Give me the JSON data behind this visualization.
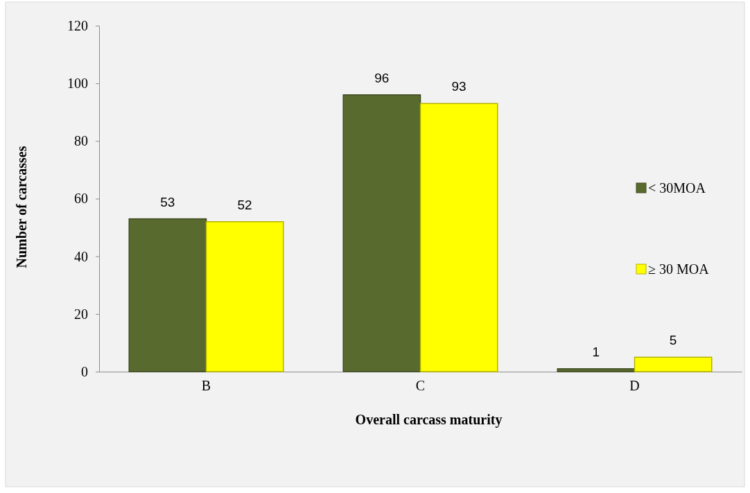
{
  "chart_data": {
    "type": "bar",
    "xlabel": "Overall carcass maturity",
    "ylabel": "Number of carcasses",
    "categories": [
      "B",
      "C",
      "D"
    ],
    "series": [
      {
        "name": "< 30MOA",
        "color": "#586a2e",
        "values": [
          53,
          96,
          1
        ]
      },
      {
        "name": "≥ 30 MOA",
        "color": "#ffff00",
        "values": [
          52,
          93,
          5
        ]
      }
    ],
    "ylim": [
      0,
      120
    ],
    "yticks": [
      0,
      20,
      40,
      60,
      80,
      100,
      120
    ],
    "data_labels": true,
    "legend": "right"
  }
}
